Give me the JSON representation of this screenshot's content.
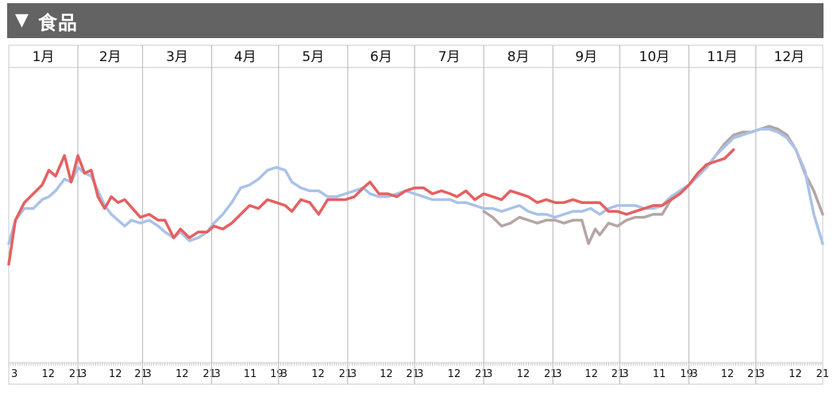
{
  "section": {
    "collapse_icon": "▼",
    "title": "食品"
  },
  "colors": {
    "red": "#e56060",
    "blue": "#a9c2e8",
    "gray": "#b4a6a4",
    "grid": "#bfbfbf",
    "frame": "#c8c8c8"
  },
  "chart_data": {
    "type": "line",
    "title": "食品",
    "months": [
      "1月",
      "2月",
      "3月",
      "4月",
      "5月",
      "6月",
      "7月",
      "8月",
      "9月",
      "10月",
      "11月",
      "12月"
    ],
    "month_days": [
      31,
      29,
      31,
      30,
      31,
      30,
      31,
      31,
      30,
      31,
      30,
      31
    ],
    "day_ticks": [
      [
        "3",
        "12",
        "21"
      ],
      [
        "3",
        "12",
        "21"
      ],
      [
        "3",
        "12",
        "21"
      ],
      [
        "3",
        "11",
        "19"
      ],
      [
        "3",
        "12",
        "21"
      ],
      [
        "3",
        "12",
        "21"
      ],
      [
        "3",
        "12",
        "21"
      ],
      [
        "3",
        "12",
        "21"
      ],
      [
        "3",
        "12",
        "21"
      ],
      [
        "3",
        "11",
        "19"
      ],
      [
        "3",
        "12",
        "21"
      ],
      [
        "3",
        "12",
        "21"
      ]
    ],
    "ylim": [
      0,
      100
    ],
    "grid": "vertical month separators",
    "series": [
      {
        "color": "#e56060",
        "x": "day of year",
        "points": [
          [
            1,
            33
          ],
          [
            4,
            48
          ],
          [
            8,
            54
          ],
          [
            12,
            57
          ],
          [
            16,
            60
          ],
          [
            19,
            65
          ],
          [
            22,
            63
          ],
          [
            26,
            70
          ],
          [
            29,
            61
          ],
          [
            32,
            70
          ],
          [
            35,
            64
          ],
          [
            38,
            65
          ],
          [
            41,
            56
          ],
          [
            44,
            52
          ],
          [
            47,
            56
          ],
          [
            50,
            54
          ],
          [
            53,
            55
          ],
          [
            60,
            49
          ],
          [
            64,
            50
          ],
          [
            68,
            48
          ],
          [
            71,
            48
          ],
          [
            75,
            42
          ],
          [
            78,
            45
          ],
          [
            82,
            42
          ],
          [
            86,
            44
          ],
          [
            90,
            44
          ],
          [
            93,
            46
          ],
          [
            97,
            45
          ],
          [
            101,
            47
          ],
          [
            105,
            50
          ],
          [
            109,
            53
          ],
          [
            113,
            52
          ],
          [
            117,
            55
          ],
          [
            121,
            54
          ],
          [
            125,
            53
          ],
          [
            128,
            51
          ],
          [
            132,
            55
          ],
          [
            136,
            54
          ],
          [
            140,
            50
          ],
          [
            144,
            55
          ],
          [
            148,
            55
          ],
          [
            152,
            55
          ],
          [
            156,
            56
          ],
          [
            160,
            59
          ],
          [
            163,
            61
          ],
          [
            167,
            57
          ],
          [
            171,
            57
          ],
          [
            175,
            56
          ],
          [
            179,
            58
          ],
          [
            183,
            59
          ],
          [
            187,
            59
          ],
          [
            191,
            57
          ],
          [
            195,
            58
          ],
          [
            199,
            57
          ],
          [
            202,
            56
          ],
          [
            206,
            58
          ],
          [
            210,
            55
          ],
          [
            214,
            57
          ],
          [
            218,
            56
          ],
          [
            222,
            55
          ],
          [
            226,
            58
          ],
          [
            230,
            57
          ],
          [
            234,
            56
          ],
          [
            238,
            54
          ],
          [
            242,
            55
          ],
          [
            246,
            54
          ],
          [
            250,
            54
          ],
          [
            254,
            55
          ],
          [
            258,
            54
          ],
          [
            262,
            54
          ],
          [
            266,
            54
          ],
          [
            270,
            51
          ],
          [
            274,
            51
          ],
          [
            278,
            50
          ],
          [
            282,
            51
          ],
          [
            286,
            52
          ],
          [
            290,
            53
          ],
          [
            294,
            53
          ],
          [
            298,
            55
          ],
          [
            302,
            57
          ],
          [
            306,
            60
          ],
          [
            310,
            64
          ],
          [
            314,
            67
          ],
          [
            318,
            68
          ],
          [
            322,
            69
          ],
          [
            326,
            72
          ]
        ]
      },
      {
        "color": "#a9c2e8",
        "x": "day of year",
        "points": [
          [
            1,
            40
          ],
          [
            4,
            48
          ],
          [
            8,
            52
          ],
          [
            12,
            52
          ],
          [
            16,
            55
          ],
          [
            19,
            56
          ],
          [
            22,
            58
          ],
          [
            26,
            62
          ],
          [
            29,
            61
          ],
          [
            32,
            66
          ],
          [
            35,
            64
          ],
          [
            38,
            63
          ],
          [
            41,
            58
          ],
          [
            44,
            53
          ],
          [
            47,
            50
          ],
          [
            50,
            48
          ],
          [
            53,
            46
          ],
          [
            56,
            48
          ],
          [
            60,
            47
          ],
          [
            64,
            48
          ],
          [
            68,
            46
          ],
          [
            71,
            44
          ],
          [
            75,
            42
          ],
          [
            78,
            44
          ],
          [
            82,
            41
          ],
          [
            86,
            42
          ],
          [
            90,
            44
          ],
          [
            93,
            47
          ],
          [
            97,
            50
          ],
          [
            101,
            54
          ],
          [
            105,
            59
          ],
          [
            109,
            60
          ],
          [
            113,
            62
          ],
          [
            117,
            65
          ],
          [
            121,
            66
          ],
          [
            125,
            65
          ],
          [
            128,
            61
          ],
          [
            132,
            59
          ],
          [
            136,
            58
          ],
          [
            140,
            58
          ],
          [
            144,
            56
          ],
          [
            148,
            56
          ],
          [
            152,
            57
          ],
          [
            156,
            58
          ],
          [
            160,
            59
          ],
          [
            163,
            57
          ],
          [
            167,
            56
          ],
          [
            171,
            56
          ],
          [
            175,
            57
          ],
          [
            179,
            58
          ],
          [
            183,
            57
          ],
          [
            187,
            56
          ],
          [
            191,
            55
          ],
          [
            195,
            55
          ],
          [
            199,
            55
          ],
          [
            202,
            54
          ],
          [
            206,
            54
          ],
          [
            210,
            53
          ],
          [
            214,
            52
          ],
          [
            218,
            52
          ],
          [
            222,
            51
          ],
          [
            226,
            52
          ],
          [
            230,
            53
          ],
          [
            234,
            51
          ],
          [
            238,
            50
          ],
          [
            242,
            50
          ],
          [
            246,
            49
          ],
          [
            250,
            50
          ],
          [
            254,
            51
          ],
          [
            258,
            51
          ],
          [
            262,
            52
          ],
          [
            266,
            50
          ],
          [
            270,
            52
          ],
          [
            274,
            53
          ],
          [
            278,
            53
          ],
          [
            282,
            53
          ],
          [
            286,
            52
          ],
          [
            290,
            52
          ],
          [
            294,
            53
          ],
          [
            298,
            56
          ],
          [
            302,
            58
          ],
          [
            306,
            60
          ],
          [
            310,
            63
          ],
          [
            314,
            66
          ],
          [
            318,
            70
          ],
          [
            322,
            73
          ],
          [
            326,
            76
          ],
          [
            330,
            77
          ],
          [
            334,
            78
          ],
          [
            338,
            79
          ],
          [
            342,
            79
          ],
          [
            346,
            78
          ],
          [
            350,
            76
          ],
          [
            354,
            72
          ],
          [
            358,
            65
          ],
          [
            362,
            50
          ],
          [
            366,
            40
          ]
        ]
      },
      {
        "color": "#b4a6a4",
        "x": "day of year",
        "points": [
          [
            214,
            51
          ],
          [
            218,
            49
          ],
          [
            222,
            46
          ],
          [
            226,
            47
          ],
          [
            230,
            49
          ],
          [
            234,
            48
          ],
          [
            238,
            47
          ],
          [
            242,
            48
          ],
          [
            246,
            48
          ],
          [
            250,
            47
          ],
          [
            254,
            48
          ],
          [
            258,
            48
          ],
          [
            261,
            40
          ],
          [
            264,
            45
          ],
          [
            266,
            43
          ],
          [
            270,
            47
          ],
          [
            274,
            46
          ],
          [
            278,
            48
          ],
          [
            282,
            49
          ],
          [
            286,
            49
          ],
          [
            290,
            50
          ],
          [
            294,
            50
          ],
          [
            298,
            55
          ],
          [
            302,
            58
          ],
          [
            306,
            60
          ],
          [
            310,
            63
          ],
          [
            314,
            66
          ],
          [
            318,
            70
          ],
          [
            322,
            74
          ],
          [
            326,
            77
          ],
          [
            330,
            78
          ],
          [
            334,
            78
          ],
          [
            338,
            79
          ],
          [
            342,
            80
          ],
          [
            346,
            79
          ],
          [
            350,
            77
          ],
          [
            354,
            72
          ],
          [
            358,
            64
          ],
          [
            362,
            58
          ],
          [
            366,
            50
          ]
        ]
      }
    ]
  }
}
